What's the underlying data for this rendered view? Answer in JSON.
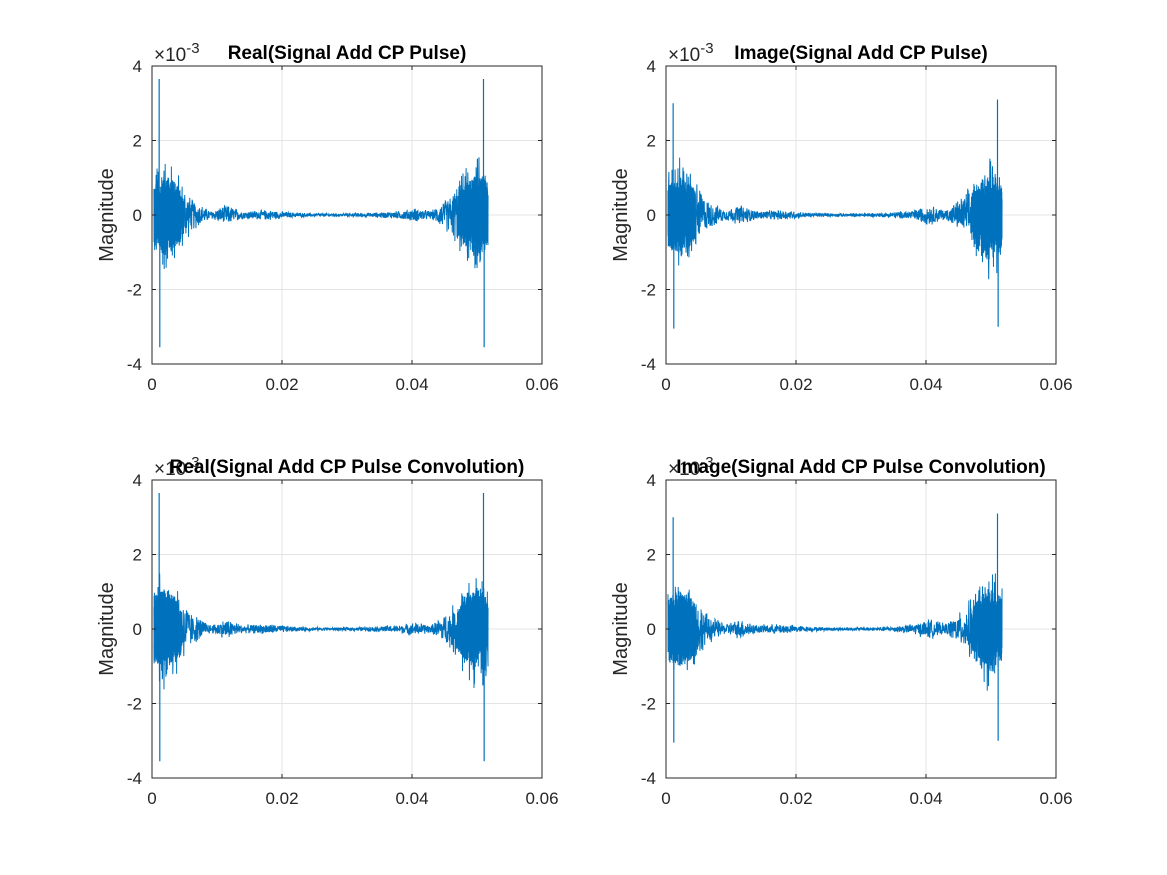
{
  "chart_data": [
    {
      "type": "line",
      "title": "Real(Signal Add CP Pulse)",
      "ylabel": "Magnitude",
      "xlabel": "",
      "xlim": [
        0,
        0.06
      ],
      "ylim": [
        -4,
        4
      ],
      "y_exponent": "-3",
      "xticks": [
        "0",
        "0.02",
        "0.04",
        "0.06"
      ],
      "yticks": [
        "-4",
        "-2",
        "0",
        "2",
        "4"
      ],
      "grid": true,
      "color": "#0072BD",
      "signal": {
        "x_start": 0.0003,
        "x_end": 0.0517,
        "peaks": [
          {
            "x": 0.0011,
            "y": 3.65
          },
          {
            "x": 0.0012,
            "y": -3.55
          },
          {
            "x": 0.051,
            "y": 3.65
          },
          {
            "x": 0.0511,
            "y": -3.55
          }
        ],
        "envelope": [
          {
            "x": 0.0003,
            "y": 1.5
          },
          {
            "x": 0.002,
            "y": 1.8
          },
          {
            "x": 0.0035,
            "y": 1.5
          },
          {
            "x": 0.006,
            "y": 0.5
          },
          {
            "x": 0.009,
            "y": 0.12
          },
          {
            "x": 0.0115,
            "y": 0.3
          },
          {
            "x": 0.014,
            "y": 0.12
          },
          {
            "x": 0.018,
            "y": 0.15
          },
          {
            "x": 0.022,
            "y": 0.07
          },
          {
            "x": 0.026,
            "y": 0.05
          },
          {
            "x": 0.03,
            "y": 0.05
          },
          {
            "x": 0.034,
            "y": 0.07
          },
          {
            "x": 0.038,
            "y": 0.12
          },
          {
            "x": 0.0405,
            "y": 0.2
          },
          {
            "x": 0.043,
            "y": 0.12
          },
          {
            "x": 0.046,
            "y": 0.6
          },
          {
            "x": 0.0485,
            "y": 1.5
          },
          {
            "x": 0.05,
            "y": 1.8
          },
          {
            "x": 0.0517,
            "y": 1.5
          }
        ]
      }
    },
    {
      "type": "line",
      "title": "Image(Signal Add CP Pulse)",
      "ylabel": "Magnitude",
      "xlabel": "",
      "xlim": [
        0,
        0.06
      ],
      "ylim": [
        -4,
        4
      ],
      "y_exponent": "-3",
      "xticks": [
        "0",
        "0.02",
        "0.04",
        "0.06"
      ],
      "yticks": [
        "-4",
        "-2",
        "0",
        "2",
        "4"
      ],
      "grid": true,
      "color": "#0072BD",
      "signal": {
        "x_start": 0.0003,
        "x_end": 0.0517,
        "peaks": [
          {
            "x": 0.0011,
            "y": 3.0
          },
          {
            "x": 0.0012,
            "y": -3.05
          },
          {
            "x": 0.051,
            "y": 3.1
          },
          {
            "x": 0.0511,
            "y": -3.0
          }
        ],
        "envelope": [
          {
            "x": 0.0003,
            "y": 1.4
          },
          {
            "x": 0.002,
            "y": 1.7
          },
          {
            "x": 0.0035,
            "y": 1.5
          },
          {
            "x": 0.006,
            "y": 0.5
          },
          {
            "x": 0.009,
            "y": 0.15
          },
          {
            "x": 0.0115,
            "y": 0.3
          },
          {
            "x": 0.014,
            "y": 0.12
          },
          {
            "x": 0.018,
            "y": 0.15
          },
          {
            "x": 0.022,
            "y": 0.07
          },
          {
            "x": 0.026,
            "y": 0.05
          },
          {
            "x": 0.03,
            "y": 0.05
          },
          {
            "x": 0.034,
            "y": 0.07
          },
          {
            "x": 0.038,
            "y": 0.15
          },
          {
            "x": 0.0405,
            "y": 0.3
          },
          {
            "x": 0.043,
            "y": 0.15
          },
          {
            "x": 0.046,
            "y": 0.6
          },
          {
            "x": 0.0485,
            "y": 1.5
          },
          {
            "x": 0.05,
            "y": 1.9
          },
          {
            "x": 0.0517,
            "y": 1.4
          }
        ]
      }
    },
    {
      "type": "line",
      "title": "Real(Signal Add CP Pulse Convolution)",
      "ylabel": "Magnitude",
      "xlabel": "",
      "xlim": [
        0,
        0.06
      ],
      "ylim": [
        -4,
        4
      ],
      "y_exponent": "-3",
      "xticks": [
        "0",
        "0.02",
        "0.04",
        "0.06"
      ],
      "yticks": [
        "-4",
        "-2",
        "0",
        "2",
        "4"
      ],
      "grid": true,
      "color": "#0072BD",
      "signal": {
        "x_start": 0.0003,
        "x_end": 0.0517,
        "peaks": [
          {
            "x": 0.0011,
            "y": 3.65
          },
          {
            "x": 0.0012,
            "y": -3.55
          },
          {
            "x": 0.051,
            "y": 3.65
          },
          {
            "x": 0.0511,
            "y": -3.55
          }
        ],
        "envelope": [
          {
            "x": 0.0003,
            "y": 1.5
          },
          {
            "x": 0.002,
            "y": 1.8
          },
          {
            "x": 0.0035,
            "y": 1.5
          },
          {
            "x": 0.006,
            "y": 0.5
          },
          {
            "x": 0.009,
            "y": 0.12
          },
          {
            "x": 0.0115,
            "y": 0.3
          },
          {
            "x": 0.014,
            "y": 0.12
          },
          {
            "x": 0.018,
            "y": 0.15
          },
          {
            "x": 0.022,
            "y": 0.07
          },
          {
            "x": 0.026,
            "y": 0.05
          },
          {
            "x": 0.03,
            "y": 0.05
          },
          {
            "x": 0.034,
            "y": 0.07
          },
          {
            "x": 0.038,
            "y": 0.12
          },
          {
            "x": 0.0405,
            "y": 0.2
          },
          {
            "x": 0.043,
            "y": 0.12
          },
          {
            "x": 0.046,
            "y": 0.6
          },
          {
            "x": 0.0485,
            "y": 1.5
          },
          {
            "x": 0.05,
            "y": 1.8
          },
          {
            "x": 0.0517,
            "y": 1.5
          }
        ]
      }
    },
    {
      "type": "line",
      "title": "Image(Signal Add CP Pulse Convolution)",
      "ylabel": "Magnitude",
      "xlabel": "",
      "xlim": [
        0,
        0.06
      ],
      "ylim": [
        -4,
        4
      ],
      "y_exponent": "-3",
      "xticks": [
        "0",
        "0.02",
        "0.04",
        "0.06"
      ],
      "yticks": [
        "-4",
        "-2",
        "0",
        "2",
        "4"
      ],
      "grid": true,
      "color": "#0072BD",
      "signal": {
        "x_start": 0.0003,
        "x_end": 0.0517,
        "peaks": [
          {
            "x": 0.0011,
            "y": 3.0
          },
          {
            "x": 0.0012,
            "y": -3.05
          },
          {
            "x": 0.051,
            "y": 3.1
          },
          {
            "x": 0.0511,
            "y": -3.0
          }
        ],
        "envelope": [
          {
            "x": 0.0003,
            "y": 1.4
          },
          {
            "x": 0.002,
            "y": 1.7
          },
          {
            "x": 0.0035,
            "y": 1.5
          },
          {
            "x": 0.006,
            "y": 0.5
          },
          {
            "x": 0.009,
            "y": 0.15
          },
          {
            "x": 0.0115,
            "y": 0.3
          },
          {
            "x": 0.014,
            "y": 0.12
          },
          {
            "x": 0.018,
            "y": 0.15
          },
          {
            "x": 0.022,
            "y": 0.07
          },
          {
            "x": 0.026,
            "y": 0.05
          },
          {
            "x": 0.03,
            "y": 0.05
          },
          {
            "x": 0.034,
            "y": 0.07
          },
          {
            "x": 0.038,
            "y": 0.15
          },
          {
            "x": 0.0405,
            "y": 0.3
          },
          {
            "x": 0.043,
            "y": 0.15
          },
          {
            "x": 0.046,
            "y": 0.6
          },
          {
            "x": 0.0485,
            "y": 1.5
          },
          {
            "x": 0.05,
            "y": 1.9
          },
          {
            "x": 0.0517,
            "y": 1.4
          }
        ]
      }
    }
  ]
}
